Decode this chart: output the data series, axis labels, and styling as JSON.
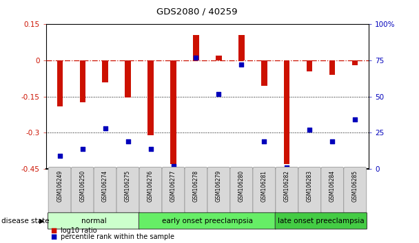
{
  "title": "GDS2080 / 40259",
  "samples": [
    "GSM106249",
    "GSM106250",
    "GSM106274",
    "GSM106275",
    "GSM106276",
    "GSM106277",
    "GSM106278",
    "GSM106279",
    "GSM106280",
    "GSM106281",
    "GSM106282",
    "GSM106283",
    "GSM106284",
    "GSM106285"
  ],
  "log10_ratio": [
    -0.19,
    -0.175,
    -0.09,
    -0.155,
    -0.31,
    -0.43,
    0.105,
    0.02,
    0.105,
    -0.105,
    -0.43,
    -0.045,
    -0.06,
    -0.02
  ],
  "percentile_rank": [
    9,
    14,
    28,
    19,
    14,
    2,
    77,
    52,
    72,
    19,
    1,
    27,
    19,
    34
  ],
  "ylim_left": [
    -0.45,
    0.15
  ],
  "ylim_right": [
    0,
    100
  ],
  "yticks_left": [
    -0.45,
    -0.3,
    -0.15,
    0.0,
    0.15
  ],
  "ytick_labels_left": [
    "-0.45",
    "-0.3",
    "-0.15",
    "0",
    "0.15"
  ],
  "yticks_right": [
    0,
    25,
    50,
    75,
    100
  ],
  "ytick_labels_right": [
    "0",
    "25",
    "50",
    "75",
    "100%"
  ],
  "hline_y": 0.0,
  "dotted_lines": [
    -0.15,
    -0.3
  ],
  "bar_color": "#cc1100",
  "scatter_color": "#0000bb",
  "bar_width": 0.25,
  "groups": [
    {
      "label": "normal",
      "start": 0,
      "end": 3,
      "color": "#ccffcc"
    },
    {
      "label": "early onset preeclampsia",
      "start": 4,
      "end": 9,
      "color": "#66ee66"
    },
    {
      "label": "late onset preeclampsia",
      "start": 10,
      "end": 13,
      "color": "#44cc44"
    }
  ],
  "legend_bar_label": "log10 ratio",
  "legend_scatter_label": "percentile rank within the sample",
  "disease_state_label": "disease state",
  "background_color": "#ffffff"
}
